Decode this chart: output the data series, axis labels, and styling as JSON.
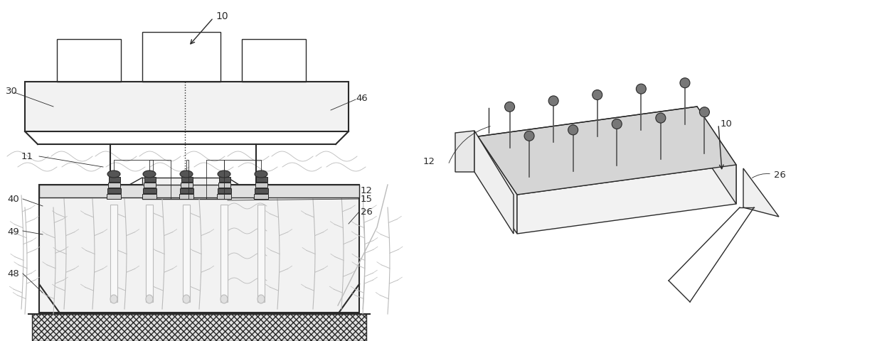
{
  "bg_color": "#ffffff",
  "line_color": "#2a2a2a",
  "gray_color": "#888888",
  "light_gray": "#bbbbbb",
  "dark_gray": "#555555",
  "mid_gray": "#999999",
  "face_light": "#f2f2f2",
  "face_mid": "#e0e0e0",
  "face_dark": "#cccccc",
  "hatch_color": "#bbbbbb"
}
